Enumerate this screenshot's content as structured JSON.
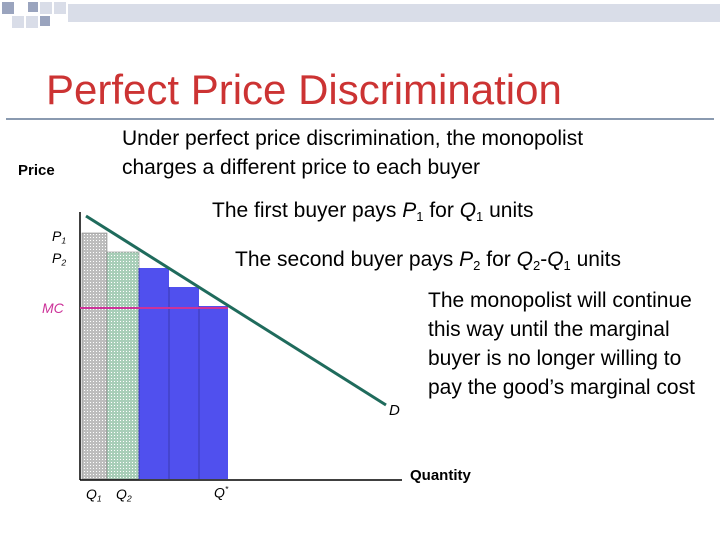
{
  "slide": {
    "title": "Perfect Price Discrimination",
    "intro_line1": "Under perfect price discrimination, the monopolist",
    "intro_line2": "charges a different price to each buyer"
  },
  "axes": {
    "y_label": "Price",
    "x_label": "Quantity"
  },
  "labels": {
    "p1": "P",
    "p1_sub": "1",
    "p2": "P",
    "p2_sub": "2",
    "mc": "MC",
    "demand": "D",
    "q1": "Q",
    "q1_sub": "1",
    "q2": "Q",
    "q2_sub": "2",
    "qstar": "Q",
    "qstar_sup": "*"
  },
  "statements": {
    "first_a": "The first buyer pays ",
    "first_p": "P",
    "first_p_sub": "1",
    "first_b": " for ",
    "first_q": "Q",
    "first_q_sub": "1",
    "first_c": " units",
    "second_a": "The second buyer pays ",
    "second_p": "P",
    "second_p_sub": "2",
    "second_b": " for ",
    "second_q2": "Q",
    "second_q2_sub": "2",
    "second_dash": "-",
    "second_q1": "Q",
    "second_q1_sub": "1",
    "second_c": " units",
    "third": "The monopolist will continue this way until the marginal buyer is no longer willing to pay the good’s marginal cost"
  },
  "colors": {
    "title": "#cc3333",
    "demand": "#1f6b5c",
    "mc": "#cc3399",
    "bar_first": "#c8c8c8",
    "bar_second": "#b9d9c8",
    "bar_rest": "#5555ee"
  }
}
